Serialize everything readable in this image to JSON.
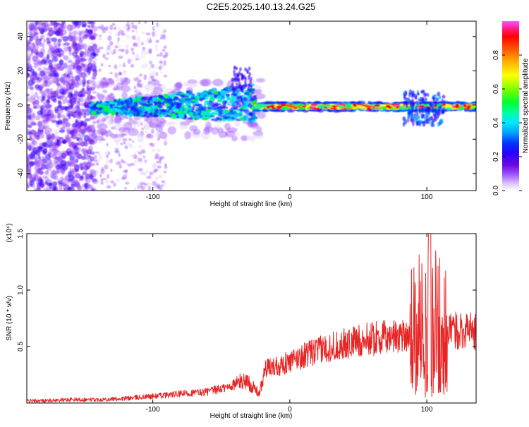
{
  "title": "C2E5.2025.140.13.24.G25",
  "colors": {
    "snr_line": "#e82424",
    "axis": "#000000"
  },
  "chart_data": [
    {
      "type": "heatmap",
      "xlabel": "Height of straight line (km)",
      "ylabel": "Frequency (Hz)",
      "xlim": [
        -192,
        136
      ],
      "ylim": [
        -50,
        49
      ],
      "xticks": [
        -100,
        0,
        100
      ],
      "yticks": [
        -40,
        -20,
        0,
        20,
        40
      ],
      "colorbar": {
        "label": "Normalized spectral amplitude",
        "range": [
          0,
          1
        ],
        "ticks": [
          0.0,
          0.2,
          0.4,
          0.6,
          0.8
        ],
        "colormap": [
          "#ffffff",
          "#dcc8f8",
          "#9b4dff",
          "#6a0ae0",
          "#2a00ff",
          "#0033ff",
          "#00c8ff",
          "#00ffd0",
          "#00ff55",
          "#7cff00",
          "#ffff00",
          "#ffb000",
          "#ff5a00",
          "#ff0000",
          "#ff33aa",
          "#ff55ff"
        ]
      },
      "features": [
        {
          "x_range": [
            -192,
            -145
          ],
          "description_value": "broadband scatter",
          "frequency_range": [
            -50,
            49
          ]
        },
        {
          "x_range": [
            -145,
            -25
          ],
          "frequency_range": [
            -12,
            8
          ]
        },
        {
          "x_range": [
            -25,
            136
          ],
          "frequency": -1
        }
      ]
    },
    {
      "type": "line",
      "xlabel": "Height of straight line (km)",
      "ylabel": "SNR (10 * v/v)",
      "y_multiplier": "(x10⁴)",
      "xlim": [
        -192,
        136
      ],
      "ylim": [
        0,
        1.5
      ],
      "xticks": [
        -100,
        0,
        100
      ],
      "yticks": [
        0.5,
        1.0,
        1.5
      ],
      "ytick_labels": [
        "0.5",
        "1.0",
        "1.5"
      ],
      "x": [
        -192,
        -180,
        -160,
        -140,
        -120,
        -100,
        -80,
        -60,
        -45,
        -38,
        -32,
        -22,
        -18,
        -10,
        0,
        10,
        20,
        30,
        40,
        50,
        60,
        70,
        80,
        87,
        90,
        95,
        100,
        105,
        110,
        115,
        120,
        125,
        130,
        136
      ],
      "y": [
        0.02,
        0.02,
        0.03,
        0.03,
        0.04,
        0.06,
        0.08,
        0.1,
        0.14,
        0.18,
        0.2,
        0.08,
        0.3,
        0.33,
        0.36,
        0.42,
        0.46,
        0.5,
        0.52,
        0.55,
        0.57,
        0.58,
        0.6,
        0.62,
        1.0,
        0.9,
        1.1,
        1.3,
        0.9,
        0.62,
        0.64,
        0.65,
        0.66,
        0.62
      ]
    }
  ]
}
